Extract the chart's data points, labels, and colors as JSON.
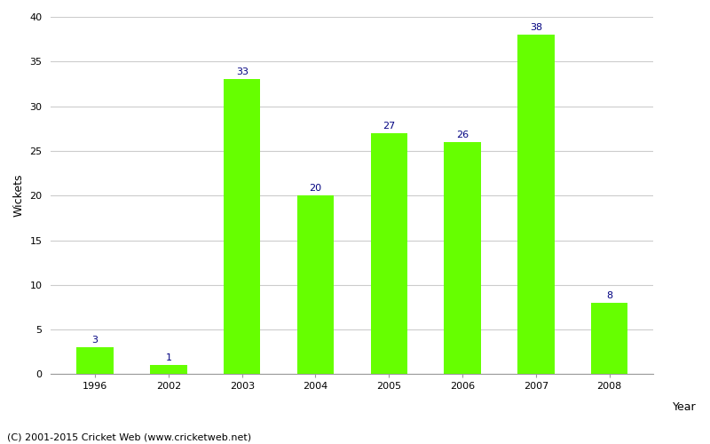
{
  "categories": [
    "1996",
    "2002",
    "2003",
    "2004",
    "2005",
    "2006",
    "2007",
    "2008"
  ],
  "values": [
    3,
    1,
    33,
    20,
    27,
    26,
    38,
    8
  ],
  "bar_color": "#66ff00",
  "label_color": "#000080",
  "xlabel": "Year",
  "ylabel": "Wickets",
  "ylim": [
    0,
    40
  ],
  "yticks": [
    0,
    5,
    10,
    15,
    20,
    25,
    30,
    35,
    40
  ],
  "grid_color": "#cccccc",
  "background_color": "#ffffff",
  "footer": "(C) 2001-2015 Cricket Web (www.cricketweb.net)",
  "label_fontsize": 8,
  "axis_label_fontsize": 9,
  "tick_fontsize": 8,
  "footer_fontsize": 8,
  "bar_width": 0.5
}
